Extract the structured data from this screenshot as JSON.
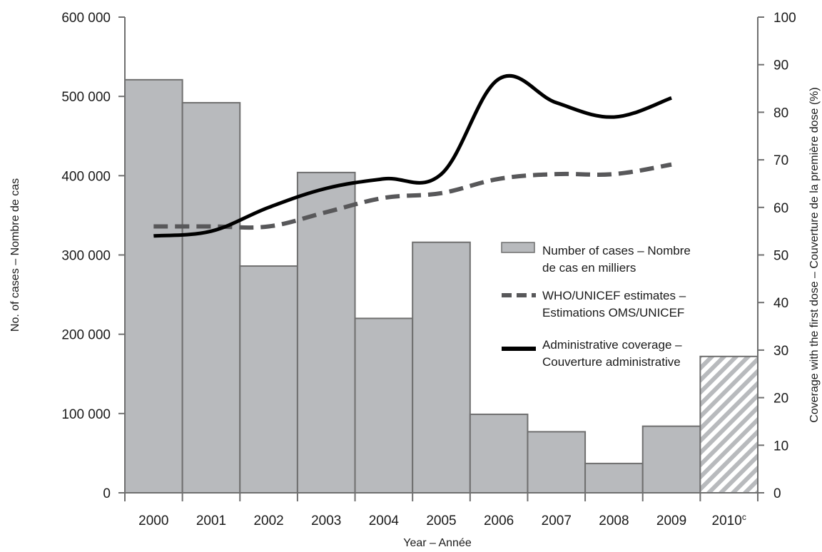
{
  "chart_data": {
    "type": "bar",
    "categories": [
      "2000",
      "2001",
      "2002",
      "2003",
      "2004",
      "2005",
      "2006",
      "2007",
      "2008",
      "2009",
      "2010"
    ],
    "category_superscripts": [
      "",
      "",
      "",
      "",
      "",
      "",
      "",
      "",
      "",
      "",
      "c"
    ],
    "series": [
      {
        "name": "Number of cases – Nombre de cas en milliers",
        "type": "bar",
        "axis": "left",
        "values": [
          521000,
          492000,
          286000,
          404000,
          220000,
          316000,
          99000,
          77000,
          37000,
          84000,
          172000
        ],
        "estimated": [
          false,
          false,
          false,
          false,
          false,
          false,
          false,
          false,
          false,
          false,
          true
        ]
      },
      {
        "name": "WHO/UNICEF estimates – Estimations OMS/UNICEF",
        "type": "line",
        "style": "dashed",
        "axis": "right",
        "values": [
          56,
          56,
          56,
          59,
          62,
          63,
          66,
          67,
          67,
          69,
          null
        ]
      },
      {
        "name": "Administrative coverage – Couverture administrative",
        "type": "line",
        "style": "solid",
        "axis": "right",
        "values": [
          54,
          55,
          60,
          64,
          66,
          67,
          87,
          82,
          79,
          83,
          null
        ]
      }
    ],
    "xlabel": "Year – Année",
    "ylabel": "No. of cases – Nombre de cas",
    "y2label": "Coverage with the first dose – Couverture de la première dose (%)",
    "ylim": [
      0,
      600000
    ],
    "y2lim": [
      0,
      100
    ],
    "yticks": [
      "0",
      "100 000",
      "200 000",
      "300 000",
      "400 000",
      "500 000",
      "600 000"
    ],
    "y2ticks": [
      "0",
      "10",
      "20",
      "30",
      "40",
      "50",
      "60",
      "70",
      "80",
      "90",
      "100"
    ],
    "grid": false,
    "legend": {
      "position": "center-right",
      "entries": [
        [
          "Number of cases – Nombre",
          "de cas en milliers"
        ],
        [
          "WHO/UNICEF estimates –",
          "Estimations OMS/UNICEF"
        ],
        [
          "Administrative coverage –",
          "Couverture administrative"
        ]
      ]
    },
    "colors": {
      "bar_fill": "#b8babd",
      "bar_stroke": "#6f6f6f",
      "hatch": "#b8babd",
      "dashed_line": "#58585a",
      "solid_line": "#000000",
      "axis": "#6f6f6f"
    }
  }
}
